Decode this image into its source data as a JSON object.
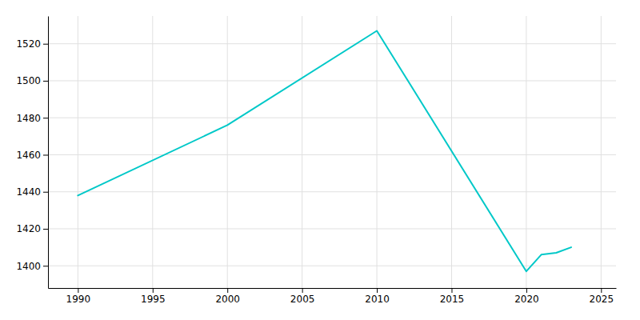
{
  "chart_data": {
    "type": "line",
    "x": [
      1990,
      2000,
      2010,
      2020,
      2021,
      2022,
      2023
    ],
    "values": [
      1438,
      1476,
      1527,
      1397,
      1406,
      1407,
      1410
    ],
    "color": "#00C8C8",
    "xlim": [
      1988,
      2026
    ],
    "ylim": [
      1388,
      1535
    ],
    "xticks": [
      1990,
      1995,
      2000,
      2005,
      2010,
      2015,
      2020,
      2025
    ],
    "yticks": [
      1400,
      1420,
      1440,
      1460,
      1480,
      1500,
      1520
    ],
    "grid": true
  }
}
